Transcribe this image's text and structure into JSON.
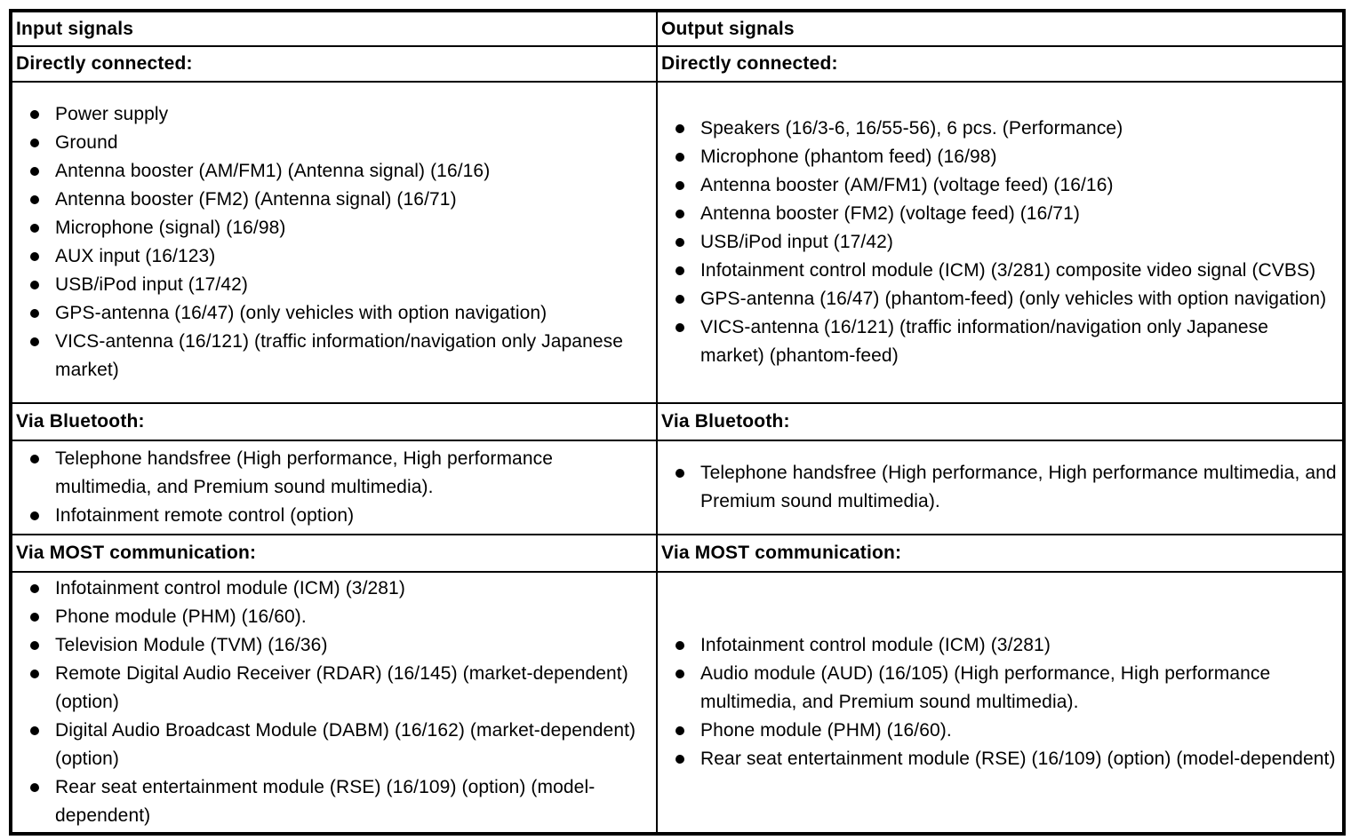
{
  "colors": {
    "text": "#000000",
    "border": "#000000",
    "background": "#ffffff"
  },
  "table": {
    "columns": [
      {
        "header": "Input signals",
        "sections": [
          {
            "label": "Directly connected:",
            "items": [
              "Power supply",
              "Ground",
              "Antenna booster (AM/FM1) (Antenna signal) (16/16)",
              "Antenna booster (FM2) (Antenna signal) (16/71)",
              "Microphone (signal) (16/98)",
              "AUX input (16/123)",
              "USB/iPod input (17/42)",
              "GPS-antenna (16/47) (only vehicles with option navigation)",
              "VICS-antenna (16/121) (traffic information/navigation only Japanese market)"
            ]
          },
          {
            "label": "Via Bluetooth:",
            "items": [
              "Telephone handsfree (High performance, High performance multimedia, and Premium sound multimedia).",
              "Infotainment remote control (option)"
            ]
          },
          {
            "label": "Via MOST communication:",
            "items": [
              "Infotainment control module (ICM) (3/281)",
              "Phone module (PHM) (16/60).",
              "Television Module (TVM) (16/36)",
              "Remote Digital Audio Receiver (RDAR) (16/145) (market-dependent) (option)",
              "Digital Audio Broadcast Module (DABM) (16/162) (market-dependent) (option)",
              "Rear seat entertainment module (RSE) (16/109) (option) (model-dependent)"
            ]
          }
        ]
      },
      {
        "header": "Output signals",
        "sections": [
          {
            "label": "Directly connected:",
            "items": [
              "Speakers (16/3-6, 16/55-56), 6 pcs. (Performance)",
              "Microphone (phantom feed) (16/98)",
              "Antenna booster (AM/FM1) (voltage feed) (16/16)",
              "Antenna booster (FM2) (voltage feed) (16/71)",
              "USB/iPod input (17/42)",
              "Infotainment control module (ICM) (3/281) composite video signal (CVBS)",
              "GPS-antenna (16/47) (phantom-feed) (only vehicles with option navigation)",
              "VICS-antenna (16/121) (traffic information/navigation only Japanese market) (phantom-feed)"
            ]
          },
          {
            "label": "Via Bluetooth:",
            "items": [
              "Telephone handsfree (High performance, High performance multimedia, and Premium sound multimedia)."
            ]
          },
          {
            "label": "Via MOST communication:",
            "items": [
              "Infotainment control module (ICM) (3/281)",
              "Audio module (AUD) (16/105) (High performance, High performance multimedia, and Premium sound multimedia).",
              "Phone module (PHM) (16/60).",
              "Rear seat entertainment module (RSE) (16/109) (option) (model-dependent)"
            ]
          }
        ]
      }
    ]
  }
}
